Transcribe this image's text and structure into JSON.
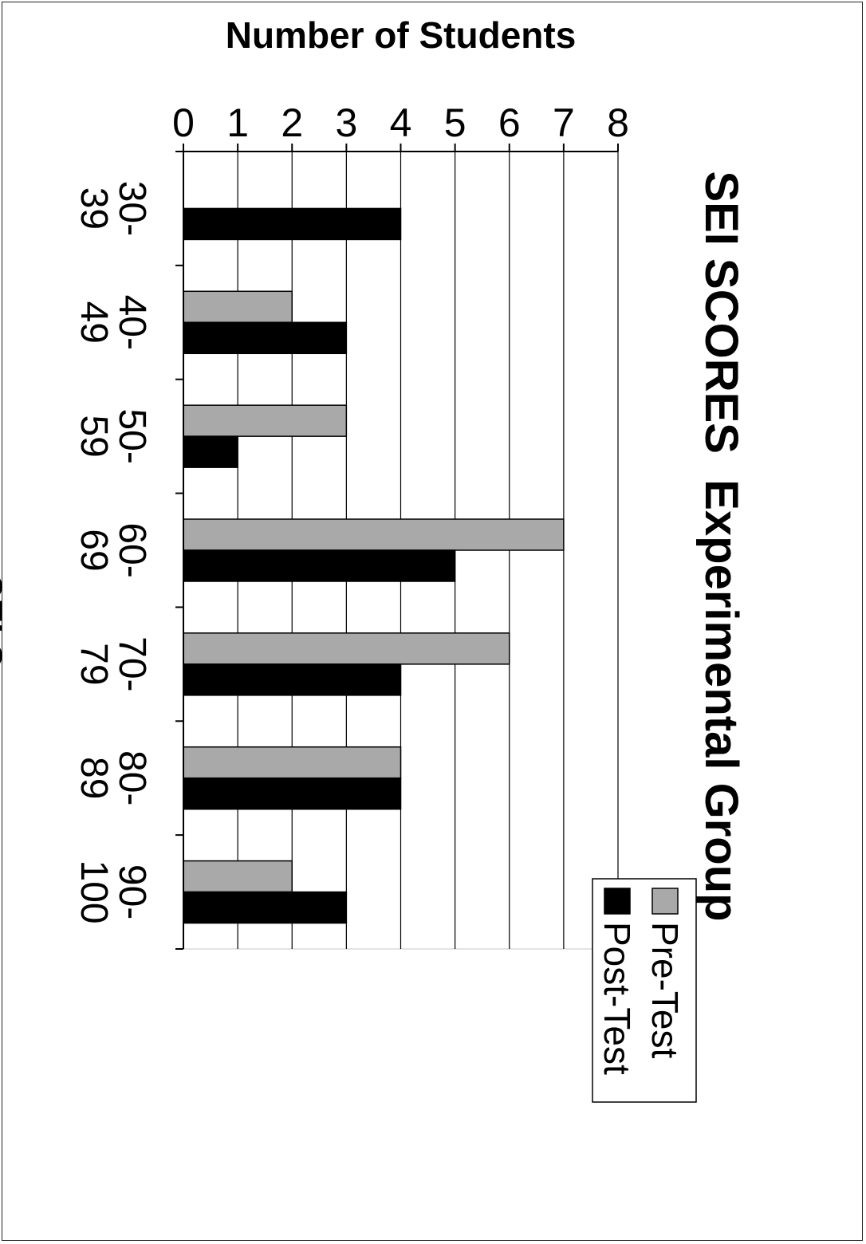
{
  "colors": {
    "pre_test": "#a9a9a9",
    "post_test": "#000000",
    "background": "#ffffff",
    "grid": "#000000"
  },
  "chart_data": {
    "type": "bar",
    "orientation": "vertical, printed rotated 90 degrees clockwise on the page",
    "title": "SEI SCORES  Experimental Group",
    "xlabel": "SEI Scores",
    "ylabel": "Number of Students",
    "categories": [
      [
        "30-",
        "39"
      ],
      [
        "40-",
        "49"
      ],
      [
        "50-",
        "59"
      ],
      [
        "60-",
        "69"
      ],
      [
        "70-",
        "79"
      ],
      [
        "80-",
        "89"
      ],
      [
        "90-",
        "100"
      ]
    ],
    "series": [
      {
        "name": "Pre-Test",
        "values": [
          0,
          2,
          3,
          7,
          6,
          4,
          2
        ]
      },
      {
        "name": "Post-Test",
        "values": [
          4,
          3,
          1,
          5,
          4,
          4,
          3
        ]
      }
    ],
    "ylim": [
      0,
      8
    ],
    "yticks": [
      "0",
      "1",
      "2",
      "3",
      "4",
      "5",
      "6",
      "7",
      "8"
    ],
    "grid": true,
    "legend": "top-right"
  }
}
